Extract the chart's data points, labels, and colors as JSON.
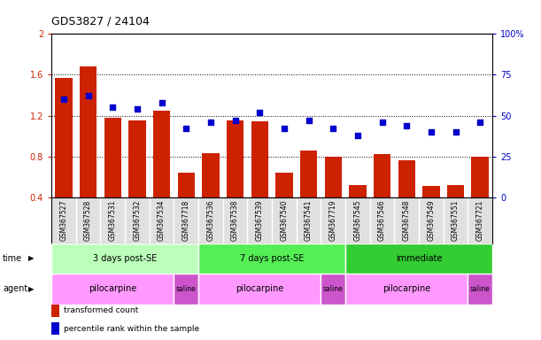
{
  "title": "GDS3827 / 24104",
  "samples": [
    "GSM367527",
    "GSM367528",
    "GSM367531",
    "GSM367532",
    "GSM367534",
    "GSM367718",
    "GSM367536",
    "GSM367538",
    "GSM367539",
    "GSM367540",
    "GSM367541",
    "GSM367719",
    "GSM367545",
    "GSM367546",
    "GSM367548",
    "GSM367549",
    "GSM367551",
    "GSM367721"
  ],
  "bar_values": [
    1.57,
    1.68,
    1.18,
    1.15,
    1.25,
    0.64,
    0.83,
    1.15,
    1.14,
    0.64,
    0.86,
    0.8,
    0.52,
    0.82,
    0.76,
    0.51,
    0.52,
    0.8
  ],
  "dot_values": [
    60,
    62,
    55,
    54,
    58,
    42,
    46,
    47,
    52,
    42,
    47,
    42,
    38,
    46,
    44,
    40,
    40,
    46
  ],
  "bar_color": "#cc2200",
  "dot_color": "#0000cc",
  "ylim_left": [
    0.4,
    2.0
  ],
  "ylim_right": [
    0,
    100
  ],
  "yticks_left": [
    0.4,
    0.8,
    1.2,
    1.6,
    2.0
  ],
  "ytick_labels_left": [
    "0.4",
    "0.8",
    "1.2",
    "1.6",
    "2"
  ],
  "yticks_right": [
    0,
    25,
    50,
    75,
    100
  ],
  "ytick_labels_right": [
    "0",
    "25",
    "50",
    "75",
    "100%"
  ],
  "hlines": [
    0.8,
    1.2,
    1.6
  ],
  "time_groups": [
    {
      "label": "3 days post-SE",
      "start": 0,
      "end": 6,
      "color": "#bbffbb"
    },
    {
      "label": "7 days post-SE",
      "start": 6,
      "end": 12,
      "color": "#55ee55"
    },
    {
      "label": "immediate",
      "start": 12,
      "end": 18,
      "color": "#33cc33"
    }
  ],
  "agent_groups": [
    {
      "label": "pilocarpine",
      "start": 0,
      "end": 5,
      "color": "#ff99ff"
    },
    {
      "label": "saline",
      "start": 5,
      "end": 6,
      "color": "#cc55cc"
    },
    {
      "label": "pilocarpine",
      "start": 6,
      "end": 11,
      "color": "#ff99ff"
    },
    {
      "label": "saline",
      "start": 11,
      "end": 12,
      "color": "#cc55cc"
    },
    {
      "label": "pilocarpine",
      "start": 12,
      "end": 17,
      "color": "#ff99ff"
    },
    {
      "label": "saline",
      "start": 17,
      "end": 18,
      "color": "#cc55cc"
    }
  ],
  "legend_items": [
    {
      "label": "transformed count",
      "color": "#cc2200"
    },
    {
      "label": "percentile rank within the sample",
      "color": "#0000cc"
    }
  ],
  "bg_color": "#ffffff"
}
